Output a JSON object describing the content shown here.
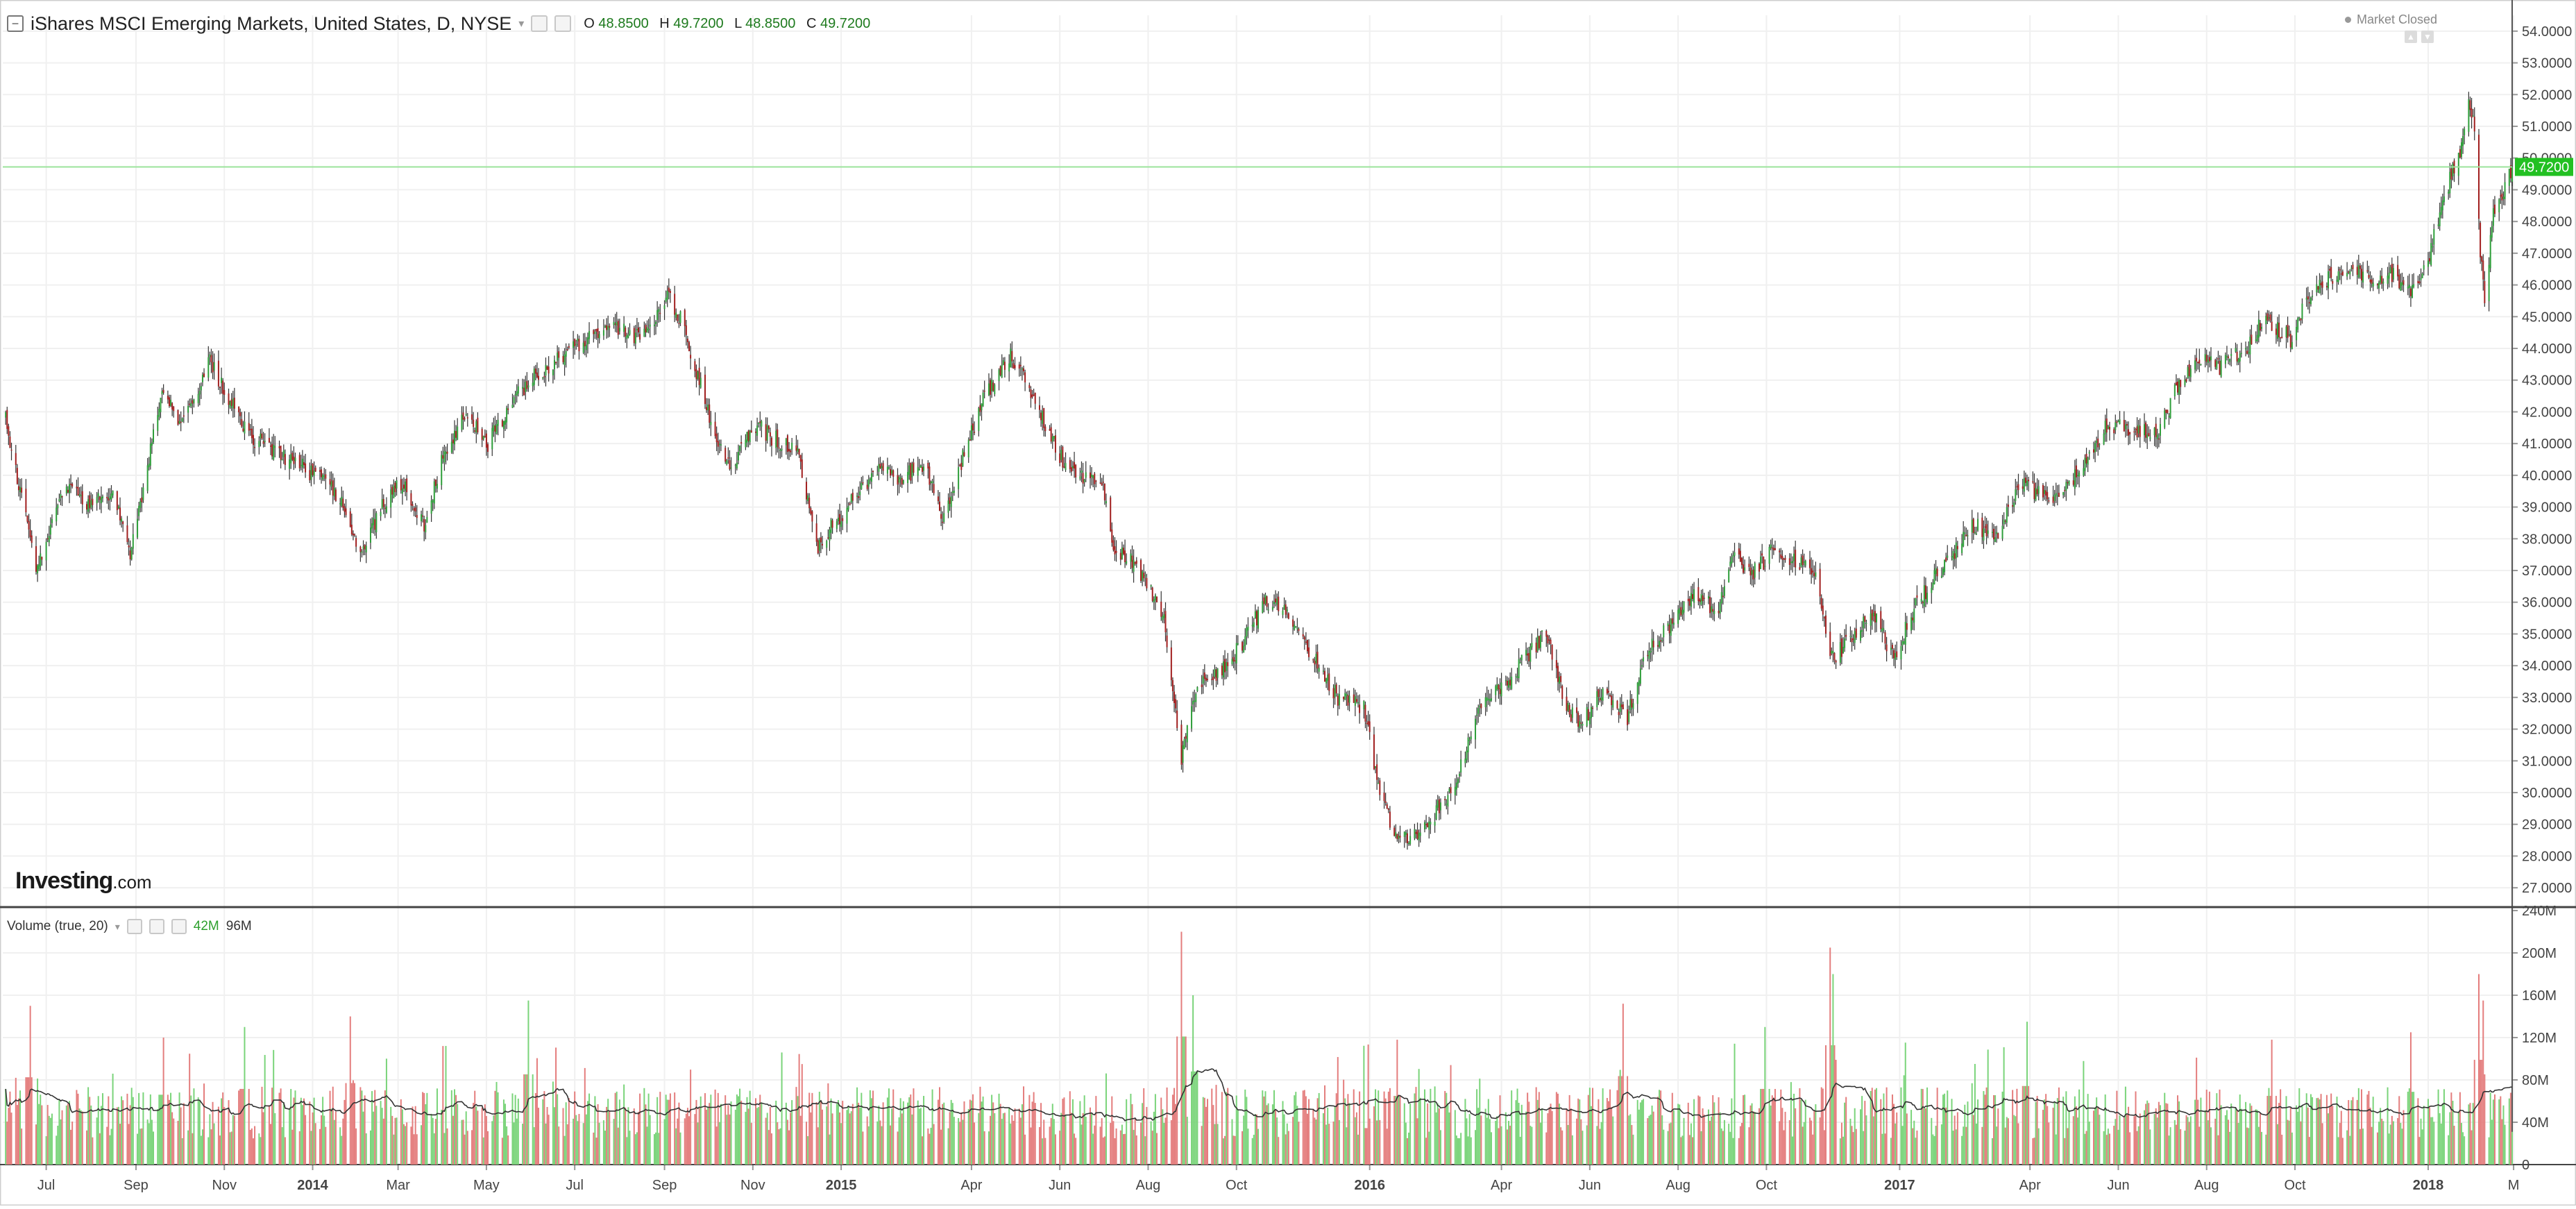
{
  "header": {
    "title": "iShares MSCI Emerging Markets, United States, D, NYSE",
    "ohlc": [
      {
        "label": "O",
        "value": "48.8500"
      },
      {
        "label": "H",
        "value": "49.7200"
      },
      {
        "label": "L",
        "value": "48.8500"
      },
      {
        "label": "C",
        "value": "49.7200"
      }
    ],
    "market_status": "Market Closed"
  },
  "branding": {
    "logo_main": "Investing",
    "logo_suffix": ".com"
  },
  "volume_panel": {
    "title": "Volume (true, 20)",
    "current_value": "42M",
    "ma_value": "96M"
  },
  "colors": {
    "up": "#2e9e3a",
    "down": "#a11f1f",
    "volume_up": "#7ad47a",
    "volume_down": "#e47d7d",
    "price_line": "#9be39b",
    "price_tag": "#22c022",
    "grid": "#f0f0f0"
  },
  "chart_data": [
    {
      "type": "candlestick",
      "title": "iShares MSCI Emerging Markets, United States, D, NYSE",
      "ylim": [
        26.5,
        54.5
      ],
      "yticks": [
        "27.0000",
        "28.0000",
        "29.0000",
        "30.0000",
        "31.0000",
        "32.0000",
        "33.0000",
        "34.0000",
        "35.0000",
        "36.0000",
        "37.0000",
        "38.0000",
        "39.0000",
        "40.0000",
        "41.0000",
        "42.0000",
        "43.0000",
        "44.0000",
        "45.0000",
        "46.0000",
        "47.0000",
        "48.0000",
        "49.0000",
        "50.0000",
        "51.0000",
        "52.0000",
        "53.0000",
        "54.0000"
      ],
      "x_range": [
        "2013-06-01",
        "2018-02-28"
      ],
      "xticks": [
        {
          "date": "2013-07-01",
          "label": "Jul"
        },
        {
          "date": "2013-09-01",
          "label": "Sep"
        },
        {
          "date": "2013-11-01",
          "label": "Nov"
        },
        {
          "date": "2014-01-01",
          "label": "2014"
        },
        {
          "date": "2014-03-01",
          "label": "Mar"
        },
        {
          "date": "2014-05-01",
          "label": "May"
        },
        {
          "date": "2014-07-01",
          "label": "Jul"
        },
        {
          "date": "2014-09-01",
          "label": "Sep"
        },
        {
          "date": "2014-11-01",
          "label": "Nov"
        },
        {
          "date": "2015-01-01",
          "label": "2015"
        },
        {
          "date": "2015-04-01",
          "label": "Apr"
        },
        {
          "date": "2015-06-01",
          "label": "Jun"
        },
        {
          "date": "2015-08-01",
          "label": "Aug"
        },
        {
          "date": "2015-10-01",
          "label": "Oct"
        },
        {
          "date": "2016-01-01",
          "label": "2016"
        },
        {
          "date": "2016-04-01",
          "label": "Apr"
        },
        {
          "date": "2016-06-01",
          "label": "Jun"
        },
        {
          "date": "2016-08-01",
          "label": "Aug"
        },
        {
          "date": "2016-10-01",
          "label": "Oct"
        },
        {
          "date": "2017-01-01",
          "label": "2017"
        },
        {
          "date": "2017-04-01",
          "label": "Apr"
        },
        {
          "date": "2017-06-01",
          "label": "Jun"
        },
        {
          "date": "2017-08-01",
          "label": "Aug"
        },
        {
          "date": "2017-10-01",
          "label": "Oct"
        },
        {
          "date": "2018-01-01",
          "label": "2018"
        },
        {
          "date": "2018-03-01",
          "label": "M"
        }
      ],
      "last_price": 49.72,
      "last_price_label": "49.7200",
      "price_path": [
        [
          "2013-06-01",
          42.2
        ],
        [
          "2013-06-24",
          37.0
        ],
        [
          "2013-07-01",
          38.0
        ],
        [
          "2013-07-15",
          39.7
        ],
        [
          "2013-07-31",
          39.0
        ],
        [
          "2013-08-15",
          39.5
        ],
        [
          "2013-08-28",
          37.6
        ],
        [
          "2013-09-10",
          40.5
        ],
        [
          "2013-09-19",
          42.8
        ],
        [
          "2013-10-01",
          41.5
        ],
        [
          "2013-10-22",
          43.6
        ],
        [
          "2013-11-05",
          42.3
        ],
        [
          "2013-11-20",
          41.2
        ],
        [
          "2013-12-05",
          40.8
        ],
        [
          "2013-12-20",
          40.4
        ],
        [
          "2014-01-10",
          39.8
        ],
        [
          "2014-01-23",
          39.0
        ],
        [
          "2014-02-03",
          37.5
        ],
        [
          "2014-02-20",
          39.2
        ],
        [
          "2014-03-05",
          39.8
        ],
        [
          "2014-03-19",
          38.4
        ],
        [
          "2014-04-02",
          40.7
        ],
        [
          "2014-04-17",
          42.0
        ],
        [
          "2014-05-02",
          41.0
        ],
        [
          "2014-05-20",
          42.4
        ],
        [
          "2014-06-05",
          43.2
        ],
        [
          "2014-06-25",
          43.8
        ],
        [
          "2014-07-15",
          44.4
        ],
        [
          "2014-07-30",
          44.6
        ],
        [
          "2014-08-12",
          44.4
        ],
        [
          "2014-08-29",
          45.2
        ],
        [
          "2014-09-03",
          45.8
        ],
        [
          "2014-09-15",
          44.6
        ],
        [
          "2014-10-01",
          42.0
        ],
        [
          "2014-10-16",
          40.2
        ],
        [
          "2014-11-03",
          41.6
        ],
        [
          "2014-11-14",
          41.2
        ],
        [
          "2014-12-01",
          40.8
        ],
        [
          "2014-12-16",
          37.8
        ],
        [
          "2015-01-05",
          39.0
        ],
        [
          "2015-01-27",
          40.2
        ],
        [
          "2015-02-10",
          39.8
        ],
        [
          "2015-02-27",
          40.4
        ],
        [
          "2015-03-12",
          38.6
        ],
        [
          "2015-03-25",
          40.4
        ],
        [
          "2015-04-10",
          42.5
        ],
        [
          "2015-04-28",
          43.8
        ],
        [
          "2015-05-12",
          42.6
        ],
        [
          "2015-06-01",
          40.6
        ],
        [
          "2015-06-15",
          40.0
        ],
        [
          "2015-07-01",
          39.6
        ],
        [
          "2015-07-08",
          37.6
        ],
        [
          "2015-07-20",
          37.4
        ],
        [
          "2015-07-31",
          36.6
        ],
        [
          "2015-08-12",
          35.5
        ],
        [
          "2015-08-24",
          31.0
        ],
        [
          "2015-09-04",
          33.5
        ],
        [
          "2015-09-17",
          33.7
        ],
        [
          "2015-10-02",
          34.5
        ],
        [
          "2015-10-21",
          36.0
        ],
        [
          "2015-11-05",
          35.8
        ],
        [
          "2015-11-20",
          34.5
        ],
        [
          "2015-12-10",
          33.0
        ],
        [
          "2015-12-28",
          32.7
        ],
        [
          "2016-01-08",
          30.0
        ],
        [
          "2016-01-21",
          28.4
        ],
        [
          "2016-02-10",
          29.0
        ],
        [
          "2016-02-29",
          30.3
        ],
        [
          "2016-03-15",
          32.5
        ],
        [
          "2016-04-05",
          33.5
        ],
        [
          "2016-04-20",
          34.4
        ],
        [
          "2016-05-02",
          35.0
        ],
        [
          "2016-05-16",
          32.6
        ],
        [
          "2016-05-26",
          32.2
        ],
        [
          "2016-06-10",
          33.2
        ],
        [
          "2016-06-27",
          32.4
        ],
        [
          "2016-07-11",
          34.5
        ],
        [
          "2016-07-26",
          35.2
        ],
        [
          "2016-08-10",
          36.2
        ],
        [
          "2016-08-29",
          35.8
        ],
        [
          "2016-09-08",
          37.5
        ],
        [
          "2016-09-20",
          36.8
        ],
        [
          "2016-10-05",
          37.6
        ],
        [
          "2016-10-20",
          37.4
        ],
        [
          "2016-11-03",
          37.0
        ],
        [
          "2016-11-15",
          34.2
        ],
        [
          "2016-12-01",
          35.0
        ],
        [
          "2016-12-14",
          35.6
        ],
        [
          "2016-12-28",
          34.2
        ],
        [
          "2017-01-12",
          35.9
        ],
        [
          "2017-02-01",
          37.2
        ],
        [
          "2017-02-21",
          38.4
        ],
        [
          "2017-03-10",
          38.2
        ],
        [
          "2017-03-25",
          39.8
        ],
        [
          "2017-04-10",
          39.3
        ],
        [
          "2017-04-25",
          39.5
        ],
        [
          "2017-05-10",
          40.5
        ],
        [
          "2017-05-25",
          41.6
        ],
        [
          "2017-06-10",
          41.5
        ],
        [
          "2017-06-28",
          41.2
        ],
        [
          "2017-07-10",
          42.6
        ],
        [
          "2017-07-25",
          43.7
        ],
        [
          "2017-08-10",
          43.4
        ],
        [
          "2017-08-28",
          44.0
        ],
        [
          "2017-09-10",
          45.0
        ],
        [
          "2017-09-28",
          44.3
        ],
        [
          "2017-10-10",
          45.6
        ],
        [
          "2017-10-25",
          46.2
        ],
        [
          "2017-11-10",
          46.5
        ],
        [
          "2017-11-28",
          46.0
        ],
        [
          "2017-12-08",
          46.4
        ],
        [
          "2017-12-20",
          45.7
        ],
        [
          "2018-01-02",
          47.0
        ],
        [
          "2018-01-12",
          48.8
        ],
        [
          "2018-01-23",
          50.2
        ],
        [
          "2018-01-29",
          52.0
        ],
        [
          "2018-02-02",
          50.8
        ],
        [
          "2018-02-06",
          47.0
        ],
        [
          "2018-02-09",
          45.5
        ],
        [
          "2018-02-15",
          48.3
        ],
        [
          "2018-02-21",
          48.9
        ],
        [
          "2018-02-28",
          49.72
        ]
      ]
    },
    {
      "type": "bar",
      "title": "Volume (true, 20)",
      "ylim": [
        0,
        240
      ],
      "yticks": [
        {
          "value": 0,
          "label": "0"
        },
        {
          "value": 40,
          "label": "40M"
        },
        {
          "value": 80,
          "label": "80M"
        },
        {
          "value": 120,
          "label": "120M"
        },
        {
          "value": 160,
          "label": "160M"
        },
        {
          "value": 200,
          "label": "200M"
        },
        {
          "value": 240,
          "label": "240M"
        }
      ],
      "unit": "M",
      "base_level": 55,
      "spikes": [
        [
          "2013-06-20",
          150
        ],
        [
          "2013-09-20",
          120
        ],
        [
          "2013-11-15",
          130
        ],
        [
          "2014-01-27",
          140
        ],
        [
          "2014-05-30",
          155
        ],
        [
          "2015-08-24",
          220
        ],
        [
          "2015-09-01",
          160
        ],
        [
          "2016-01-20",
          118
        ],
        [
          "2016-06-24",
          152
        ],
        [
          "2016-09-30",
          130
        ],
        [
          "2016-11-14",
          205
        ],
        [
          "2016-11-16",
          180
        ],
        [
          "2017-03-30",
          135
        ],
        [
          "2017-09-15",
          118
        ],
        [
          "2017-12-20",
          125
        ],
        [
          "2018-02-05",
          180
        ],
        [
          "2018-02-08",
          155
        ]
      ],
      "ma_window": 20,
      "ma_color": "#333333"
    }
  ]
}
